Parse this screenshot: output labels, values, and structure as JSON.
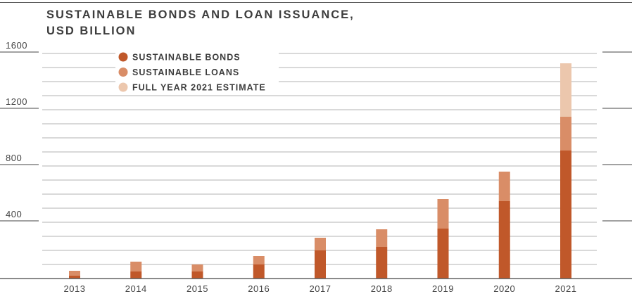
{
  "chart_data": {
    "type": "bar",
    "stacked": true,
    "title": "SUSTAINABLE BONDS AND LOAN ISSUANCE, USD BILLION",
    "title_lines": [
      "SUSTAINABLE BONDS AND LOAN ISSUANCE,",
      "USD BILLION"
    ],
    "categories": [
      "2013",
      "2014",
      "2015",
      "2016",
      "2017",
      "2018",
      "2019",
      "2020",
      "2021"
    ],
    "series": [
      {
        "name": "SUSTAINABLE BONDS",
        "color": "#c0582a",
        "values": [
          20,
          50,
          50,
          100,
          200,
          225,
          355,
          550,
          910
        ]
      },
      {
        "name": "SUSTAINABLE LOANS",
        "color": "#d98d67",
        "values": [
          35,
          70,
          50,
          60,
          90,
          125,
          210,
          210,
          240
        ]
      },
      {
        "name": "FULL YEAR 2021 ESTIMATE",
        "color": "#ecc7ad",
        "values": [
          0,
          0,
          0,
          0,
          0,
          0,
          0,
          0,
          380
        ]
      }
    ],
    "y_ticks": [
      400,
      800,
      1200,
      1600
    ],
    "ylim": [
      0,
      1600
    ],
    "grid": true,
    "legend_position": "top-left"
  }
}
